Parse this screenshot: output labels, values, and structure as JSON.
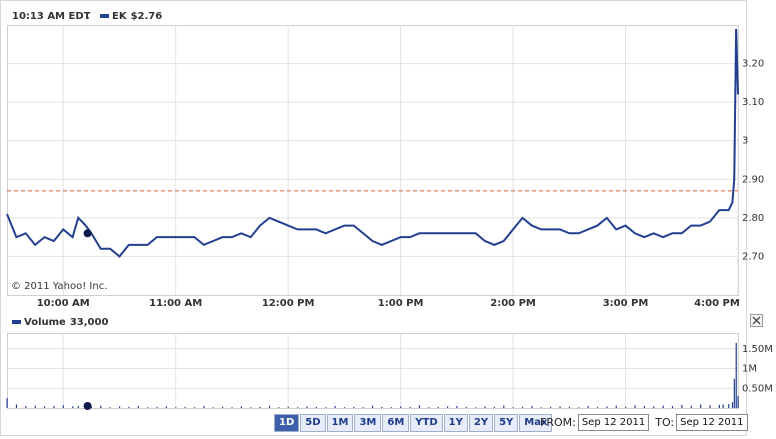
{
  "chart_data": [
    {
      "type": "line",
      "copyright": "© 2011 Yahoo! Inc.",
      "x": [
        570,
        575,
        580,
        585,
        590,
        595,
        600,
        605,
        608,
        612,
        615,
        620,
        625,
        630,
        635,
        640,
        645,
        650,
        655,
        660,
        665,
        670,
        675,
        680,
        685,
        690,
        695,
        700,
        705,
        710,
        715,
        720,
        725,
        730,
        735,
        740,
        745,
        750,
        755,
        760,
        765,
        770,
        775,
        780,
        785,
        790,
        795,
        800,
        805,
        810,
        815,
        820,
        825,
        830,
        835,
        840,
        845,
        850,
        855,
        860,
        865,
        870,
        875,
        880,
        885,
        890,
        895,
        900,
        905,
        910,
        915,
        920,
        925,
        930,
        935,
        940,
        945,
        950,
        952,
        955,
        957,
        958,
        959,
        960
      ],
      "series": [
        {
          "name": "EK",
          "color": "#233f8f",
          "values": [
            2.81,
            2.75,
            2.76,
            2.73,
            2.75,
            2.74,
            2.77,
            2.75,
            2.8,
            2.78,
            2.76,
            2.72,
            2.72,
            2.7,
            2.73,
            2.73,
            2.73,
            2.75,
            2.75,
            2.75,
            2.75,
            2.75,
            2.73,
            2.74,
            2.75,
            2.75,
            2.76,
            2.75,
            2.78,
            2.8,
            2.79,
            2.78,
            2.77,
            2.77,
            2.77,
            2.76,
            2.77,
            2.78,
            2.78,
            2.76,
            2.74,
            2.73,
            2.74,
            2.75,
            2.75,
            2.76,
            2.76,
            2.76,
            2.76,
            2.76,
            2.76,
            2.76,
            2.74,
            2.73,
            2.74,
            2.77,
            2.8,
            2.78,
            2.77,
            2.77,
            2.77,
            2.76,
            2.76,
            2.77,
            2.78,
            2.8,
            2.77,
            2.78,
            2.76,
            2.75,
            2.76,
            2.75,
            2.76,
            2.76,
            2.78,
            2.78,
            2.79,
            2.82,
            2.82,
            2.82,
            2.84,
            2.9,
            3.29,
            3.12
          ]
        }
      ],
      "cursor": {
        "x": 613,
        "value": 2.76,
        "value_label": "$2.76",
        "time_label": "10:13 AM EDT"
      },
      "ref_line": 2.87,
      "ref_color": "#e0603a",
      "xlim": [
        570,
        960
      ],
      "xticks": [
        {
          "value": 600,
          "label": "10:00 AM"
        },
        {
          "value": 660,
          "label": "11:00 AM"
        },
        {
          "value": 720,
          "label": "12:00 PM"
        },
        {
          "value": 780,
          "label": "1:00 PM"
        },
        {
          "value": 840,
          "label": "2:00 PM"
        },
        {
          "value": 900,
          "label": "3:00 PM"
        },
        {
          "value": 960,
          "label": "4:00 PM"
        }
      ],
      "ylim": [
        2.6,
        3.3
      ],
      "yticks": [
        {
          "value": 2.7,
          "label": "2.70"
        },
        {
          "value": 2.8,
          "label": "2.80"
        },
        {
          "value": 2.9,
          "label": "2.90"
        },
        3,
        {
          "value": 3.1,
          "label": "3.10"
        },
        {
          "value": 3.2,
          "label": "3.20"
        }
      ],
      "grid": true
    },
    {
      "type": "bar",
      "x": [
        570,
        575,
        580,
        585,
        590,
        595,
        600,
        605,
        608,
        612,
        615,
        620,
        625,
        630,
        635,
        640,
        645,
        650,
        655,
        660,
        665,
        670,
        675,
        680,
        685,
        690,
        695,
        700,
        705,
        710,
        715,
        720,
        725,
        730,
        735,
        740,
        745,
        750,
        755,
        760,
        765,
        770,
        775,
        780,
        785,
        790,
        795,
        800,
        805,
        810,
        815,
        820,
        825,
        830,
        835,
        840,
        845,
        850,
        855,
        860,
        865,
        870,
        875,
        880,
        885,
        890,
        895,
        900,
        905,
        910,
        915,
        920,
        925,
        930,
        935,
        940,
        945,
        950,
        952,
        955,
        957,
        958,
        959,
        960
      ],
      "series": [
        {
          "name": "Volume",
          "color": "#233f8f",
          "values": [
            250000,
            90000,
            50000,
            60000,
            40000,
            50000,
            70000,
            40000,
            50000,
            30000,
            30000,
            60000,
            20000,
            40000,
            30000,
            50000,
            20000,
            30000,
            40000,
            20000,
            30000,
            20000,
            50000,
            20000,
            30000,
            20000,
            40000,
            20000,
            30000,
            60000,
            20000,
            30000,
            20000,
            40000,
            30000,
            20000,
            50000,
            20000,
            30000,
            20000,
            60000,
            30000,
            20000,
            40000,
            30000,
            70000,
            20000,
            30000,
            40000,
            50000,
            30000,
            20000,
            40000,
            30000,
            60000,
            20000,
            30000,
            50000,
            20000,
            30000,
            40000,
            30000,
            20000,
            50000,
            30000,
            40000,
            60000,
            30000,
            70000,
            50000,
            40000,
            60000,
            50000,
            80000,
            60000,
            90000,
            70000,
            80000,
            90000,
            100000,
            150000,
            740000,
            1650000,
            300000
          ]
        }
      ],
      "cursor": {
        "x": 613,
        "value": 33000,
        "value_label": "33,000"
      },
      "xlim": [
        570,
        960
      ],
      "ylim": [
        0,
        1900000
      ],
      "yticks": [
        {
          "value": 500000,
          "label": "0.50M"
        },
        {
          "value": 1000000,
          "label": "1M"
        },
        {
          "value": 1500000,
          "label": "1.50M"
        }
      ],
      "grid": true
    }
  ],
  "range_buttons": [
    "1D",
    "5D",
    "1M",
    "3M",
    "6M",
    "YTD",
    "1Y",
    "2Y",
    "5Y",
    "Max"
  ],
  "selected_range": 0,
  "from_label": "FROM:",
  "from": "Sep 12 2011",
  "to_label": "TO:",
  "to": "Sep 12 2011"
}
